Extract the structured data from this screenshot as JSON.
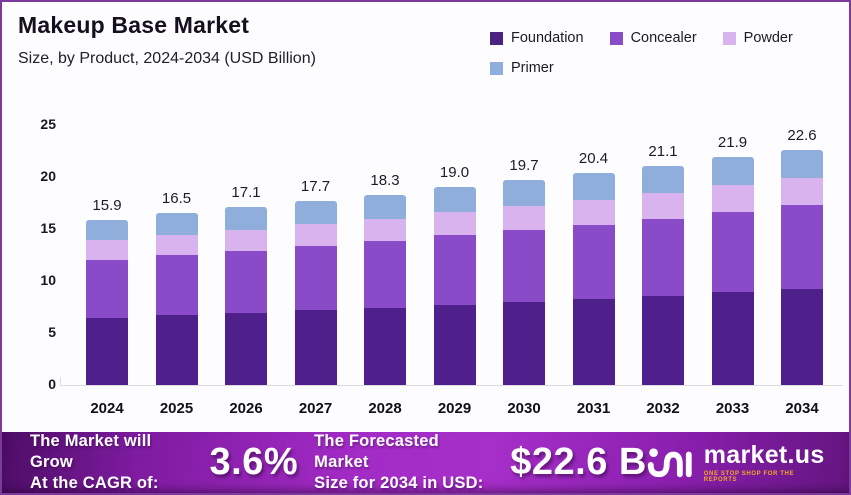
{
  "title": "Makeup Base Market",
  "subtitle": "Size, by Product, 2024-2034 (USD Billion)",
  "legend": [
    {
      "label": "Foundation",
      "color": "#4B2182"
    },
    {
      "label": "Concealer",
      "color": "#8A4BC8"
    },
    {
      "label": "Powder",
      "color": "#D9B3EE"
    },
    {
      "label": "Primer",
      "color": "#8FAEDC"
    }
  ],
  "chart_data": {
    "type": "bar",
    "stacked": true,
    "title": "Makeup Base Market Size, by Product, 2024-2034 (USD Billion)",
    "xlabel": "",
    "ylabel": "",
    "categories": [
      "2024",
      "2025",
      "2026",
      "2027",
      "2028",
      "2029",
      "2030",
      "2031",
      "2032",
      "2033",
      "2034"
    ],
    "series": [
      {
        "name": "Foundation",
        "color": "#4F1F8C",
        "values": [
          6.4,
          6.7,
          6.9,
          7.2,
          7.4,
          7.7,
          8.0,
          8.3,
          8.6,
          8.9,
          9.2
        ]
      },
      {
        "name": "Concealer",
        "color": "#8A4BC8",
        "values": [
          5.6,
          5.8,
          6.0,
          6.2,
          6.4,
          6.7,
          6.9,
          7.1,
          7.4,
          7.7,
          8.1
        ]
      },
      {
        "name": "Powder",
        "color": "#D9B3EE",
        "values": [
          1.9,
          1.9,
          2.0,
          2.1,
          2.2,
          2.2,
          2.3,
          2.4,
          2.5,
          2.6,
          2.6
        ]
      },
      {
        "name": "Primer",
        "color": "#8FAEDC",
        "values": [
          2.0,
          2.1,
          2.2,
          2.2,
          2.3,
          2.4,
          2.5,
          2.6,
          2.6,
          2.7,
          2.7
        ]
      }
    ],
    "total_labels": [
      "15.9",
      "16.5",
      "17.1",
      "17.7",
      "18.3",
      "19.0",
      "19.7",
      "20.4",
      "21.1",
      "21.9",
      "22.6"
    ],
    "yticks": [
      0,
      5,
      10,
      15,
      20,
      25
    ],
    "ylim": [
      0,
      25
    ],
    "grid": false,
    "legend_position": "top-right"
  },
  "banner": {
    "cagr_label_line1": "The Market will Grow",
    "cagr_label_line2": "At the CAGR of:",
    "cagr_value": "3.6%",
    "forecast_label_line1": "The Forecasted Market",
    "forecast_label_line2": "Size for 2034 in USD:",
    "forecast_value": "$22.6 B",
    "brand_name": "market.us",
    "brand_tagline": "ONE STOP SHOP FOR THE REPORTS"
  }
}
